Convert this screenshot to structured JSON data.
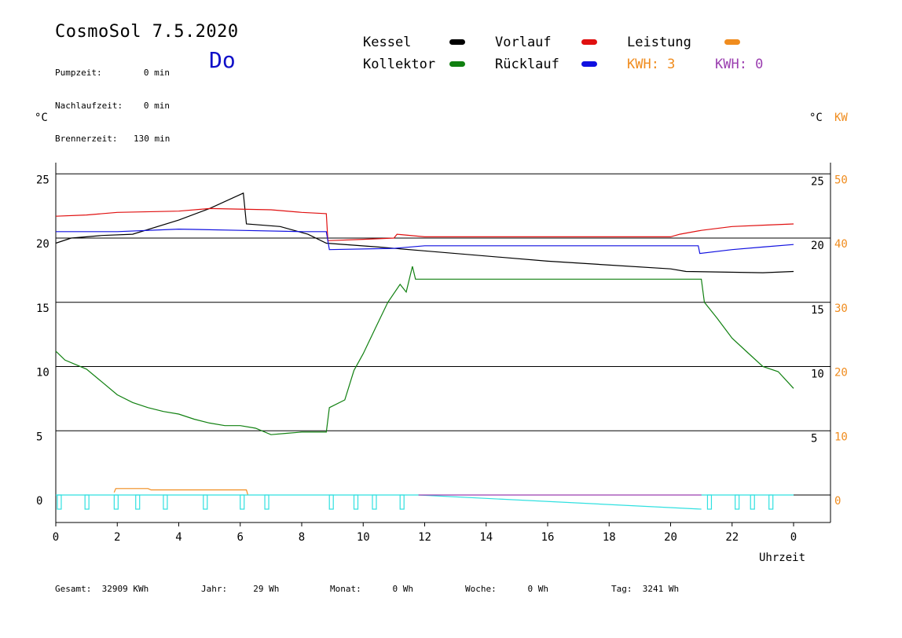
{
  "header": {
    "title": "CosmoSol 7.5.2020",
    "day": "Do",
    "stats": [
      {
        "label": "Pumpzeit:",
        "value": "0 min"
      },
      {
        "label": "Nachlaufzeit:",
        "value": "0 min"
      },
      {
        "label": "Brennerzeit:",
        "value": "130 min"
      }
    ]
  },
  "legend": {
    "kessel": {
      "label": "Kessel",
      "color": "#000000"
    },
    "vorlauf": {
      "label": "Vorlauf",
      "color": "#e01010"
    },
    "leistung": {
      "label": "Leistung",
      "color": "#f08c1e"
    },
    "kollektor": {
      "label": "Kollektor",
      "color": "#108010"
    },
    "ruecklauf": {
      "label": "Rücklauf",
      "color": "#1010e0"
    },
    "kwh_orange": "KWH: 3",
    "kwh_purple": "KWH: 0"
  },
  "axes": {
    "left_unit": "°C",
    "right_unit": "°C",
    "right_unit2": "KW",
    "xlabel": "Uhrzeit"
  },
  "footer": [
    {
      "label": "Gesamt:",
      "value": "32909 KWh"
    },
    {
      "label": "Jahr:",
      "value": "29 Wh"
    },
    {
      "label": "Monat:",
      "value": "0 Wh"
    },
    {
      "label": "Woche:",
      "value": "0 Wh"
    },
    {
      "label": "Tag:",
      "value": "3241 Wh"
    }
  ],
  "chart_data": {
    "type": "line",
    "x_ticks": [
      "0",
      "2",
      "4",
      "6",
      "8",
      "10",
      "12",
      "14",
      "16",
      "18",
      "20",
      "22",
      "0"
    ],
    "y_left_ticks": [
      "0",
      "5",
      "10",
      "15",
      "20",
      "25"
    ],
    "y_right_ticks": [
      "5",
      "10",
      "15",
      "20",
      "25"
    ],
    "y_right2_ticks": [
      "0",
      "10",
      "20",
      "30",
      "40",
      "50"
    ],
    "xlim": [
      0,
      24
    ],
    "ylim": [
      -2,
      26
    ],
    "grid": "horizontal",
    "series": [
      {
        "name": "Kessel",
        "color": "#000000",
        "points": [
          [
            0,
            19.6
          ],
          [
            0.5,
            20.0
          ],
          [
            1.5,
            20.2
          ],
          [
            2.5,
            20.3
          ],
          [
            4,
            21.4
          ],
          [
            5,
            22.3
          ],
          [
            6.1,
            23.5
          ],
          [
            6.2,
            21.1
          ],
          [
            7.3,
            20.9
          ],
          [
            8.2,
            20.3
          ],
          [
            8.8,
            19.6
          ],
          [
            10.5,
            19.3
          ],
          [
            12,
            19.0
          ],
          [
            16,
            18.2
          ],
          [
            20,
            17.6
          ],
          [
            20.5,
            17.4
          ],
          [
            23,
            17.3
          ],
          [
            24,
            17.4
          ]
        ]
      },
      {
        "name": "Vorlauf",
        "color": "#e01010",
        "points": [
          [
            0,
            21.7
          ],
          [
            1,
            21.8
          ],
          [
            2,
            22.0
          ],
          [
            4,
            22.1
          ],
          [
            5,
            22.3
          ],
          [
            7,
            22.2
          ],
          [
            8,
            22.0
          ],
          [
            8.8,
            21.9
          ],
          [
            8.85,
            19.8
          ],
          [
            10,
            19.9
          ],
          [
            11,
            20.0
          ],
          [
            11.1,
            20.3
          ],
          [
            12,
            20.1
          ],
          [
            20,
            20.1
          ],
          [
            20.3,
            20.3
          ],
          [
            21,
            20.6
          ],
          [
            22,
            20.9
          ],
          [
            23,
            21.0
          ],
          [
            24,
            21.1
          ]
        ]
      },
      {
        "name": "Rücklauf",
        "color": "#1010e0",
        "points": [
          [
            0,
            20.5
          ],
          [
            2,
            20.5
          ],
          [
            4,
            20.7
          ],
          [
            6,
            20.6
          ],
          [
            8,
            20.5
          ],
          [
            8.8,
            20.5
          ],
          [
            8.9,
            19.1
          ],
          [
            11,
            19.2
          ],
          [
            12,
            19.4
          ],
          [
            20,
            19.4
          ],
          [
            20.9,
            19.4
          ],
          [
            20.95,
            18.8
          ],
          [
            22,
            19.1
          ],
          [
            23,
            19.3
          ],
          [
            24,
            19.5
          ]
        ]
      },
      {
        "name": "Kollektor",
        "color": "#108010",
        "points": [
          [
            0,
            11.2
          ],
          [
            0.3,
            10.5
          ],
          [
            1,
            9.8
          ],
          [
            1.5,
            8.8
          ],
          [
            2,
            7.8
          ],
          [
            2.5,
            7.2
          ],
          [
            3,
            6.8
          ],
          [
            3.5,
            6.5
          ],
          [
            4,
            6.3
          ],
          [
            4.5,
            5.9
          ],
          [
            5,
            5.6
          ],
          [
            5.5,
            5.4
          ],
          [
            6,
            5.4
          ],
          [
            6.5,
            5.2
          ],
          [
            7,
            4.7
          ],
          [
            7.5,
            4.8
          ],
          [
            8,
            4.9
          ],
          [
            8.8,
            4.9
          ],
          [
            8.9,
            6.8
          ],
          [
            9.4,
            7.4
          ],
          [
            9.7,
            9.7
          ],
          [
            10,
            11.0
          ],
          [
            10.4,
            13.0
          ],
          [
            10.8,
            15.0
          ],
          [
            11.2,
            16.4
          ],
          [
            11.4,
            15.8
          ],
          [
            11.6,
            17.8
          ],
          [
            11.7,
            16.8
          ],
          [
            20,
            16.8
          ],
          [
            21,
            16.8
          ],
          [
            21.1,
            15.0
          ],
          [
            21.5,
            13.8
          ],
          [
            22,
            12.2
          ],
          [
            22.5,
            11.1
          ],
          [
            23,
            10.0
          ],
          [
            23.5,
            9.6
          ],
          [
            24,
            8.3
          ]
        ]
      },
      {
        "name": "Leistung",
        "color": "#f08c1e",
        "points": [
          [
            1.9,
            0.2
          ],
          [
            1.95,
            0.5
          ],
          [
            3,
            0.5
          ],
          [
            3.1,
            0.4
          ],
          [
            6.2,
            0.4
          ],
          [
            6.25,
            0
          ]
        ]
      },
      {
        "name": "Pumpe",
        "color": "#30e0e0",
        "points": [
          [
            0,
            0
          ],
          [
            24,
            0
          ]
        ]
      }
    ]
  }
}
